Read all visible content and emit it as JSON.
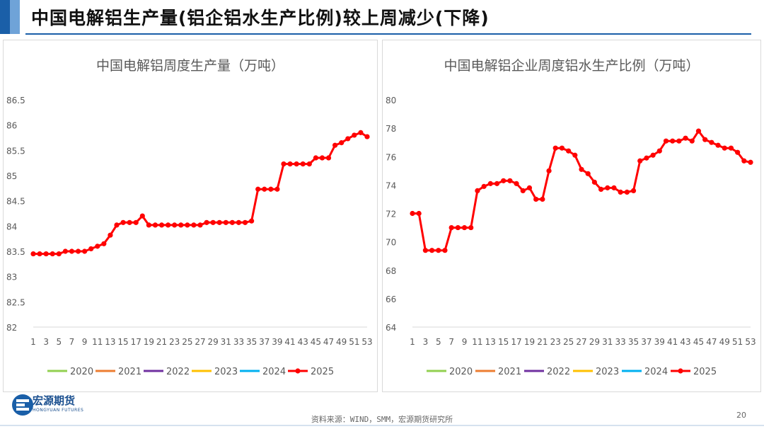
{
  "page": {
    "title": "中国电解铝生产量(铝企铝水生产比例)较上周减少(下降)",
    "source": "资料来源：WIND，SMM，宏源期货研究所",
    "page_number": "20",
    "logo_name": "宏源期货",
    "logo_sub": "HONGYUAN FUTURES",
    "brand_color": "#1a5fa8"
  },
  "chart_data": [
    {
      "type": "line",
      "title": "中国电解铝周度生产量（万吨）",
      "x": [
        1,
        2,
        3,
        4,
        5,
        6,
        7,
        8,
        9,
        10,
        11,
        12,
        13,
        14,
        15,
        16,
        17,
        18,
        19,
        20,
        21,
        22,
        23,
        24,
        25,
        26,
        27,
        28,
        29,
        30,
        31,
        32,
        33,
        34,
        35,
        36,
        37,
        38,
        39,
        40,
        41,
        42,
        43,
        44,
        45,
        46,
        47,
        48,
        49,
        50,
        51,
        52,
        53
      ],
      "x_tick_labels": [
        "1",
        "3",
        "5",
        "7",
        "9",
        "11",
        "13",
        "15",
        "17",
        "19",
        "21",
        "23",
        "25",
        "27",
        "29",
        "31",
        "33",
        "35",
        "37",
        "39",
        "41",
        "43",
        "45",
        "47",
        "49",
        "51",
        "53"
      ],
      "y_tick_labels": [
        "82",
        "82.5",
        "83",
        "83.5",
        "84",
        "84.5",
        "85",
        "85.5",
        "86",
        "86.5"
      ],
      "ylim": [
        82,
        86.5
      ],
      "legend": [
        "2020",
        "2021",
        "2022",
        "2023",
        "2024",
        "2025"
      ],
      "legend_colors": [
        "#92d050",
        "#ed7d31",
        "#7030a0",
        "#ffc000",
        "#00b0f0",
        "#ff0000"
      ],
      "legend_position": "bottom",
      "series": [
        {
          "name": "2025",
          "color": "#ff0000",
          "values": [
            83.45,
            83.45,
            83.45,
            83.45,
            83.45,
            83.5,
            83.5,
            83.5,
            83.5,
            83.55,
            83.6,
            83.65,
            83.82,
            84.02,
            84.07,
            84.07,
            84.07,
            84.2,
            84.02,
            84.02,
            84.02,
            84.02,
            84.02,
            84.02,
            84.02,
            84.02,
            84.02,
            84.07,
            84.07,
            84.07,
            84.07,
            84.07,
            84.07,
            84.07,
            84.1,
            84.73,
            84.73,
            84.73,
            84.73,
            85.23,
            85.23,
            85.23,
            85.23,
            85.23,
            85.35,
            85.35,
            85.35,
            85.6,
            85.65,
            85.73,
            85.8,
            85.85,
            85.77
          ]
        }
      ]
    },
    {
      "type": "line",
      "title": "中国电解铝企业周度铝水生产比例（万吨）",
      "x": [
        1,
        2,
        3,
        4,
        5,
        6,
        7,
        8,
        9,
        10,
        11,
        12,
        13,
        14,
        15,
        16,
        17,
        18,
        19,
        20,
        21,
        22,
        23,
        24,
        25,
        26,
        27,
        28,
        29,
        30,
        31,
        32,
        33,
        34,
        35,
        36,
        37,
        38,
        39,
        40,
        41,
        42,
        43,
        44,
        45,
        46,
        47,
        48,
        49,
        50,
        51,
        52,
        53
      ],
      "x_tick_labels": [
        "1",
        "3",
        "5",
        "7",
        "9",
        "11",
        "13",
        "15",
        "17",
        "19",
        "21",
        "23",
        "25",
        "27",
        "29",
        "31",
        "33",
        "35",
        "37",
        "39",
        "41",
        "43",
        "45",
        "47",
        "49",
        "51",
        "53"
      ],
      "y_tick_labels": [
        "64",
        "66",
        "68",
        "70",
        "72",
        "74",
        "76",
        "78",
        "80"
      ],
      "ylim": [
        64,
        80
      ],
      "legend": [
        "2020",
        "2021",
        "2022",
        "2023",
        "2024",
        "2025"
      ],
      "legend_colors": [
        "#92d050",
        "#ed7d31",
        "#7030a0",
        "#ffc000",
        "#00b0f0",
        "#ff0000"
      ],
      "legend_position": "bottom",
      "series": [
        {
          "name": "2025",
          "color": "#ff0000",
          "values": [
            72.0,
            72.0,
            69.4,
            69.4,
            69.4,
            69.4,
            71.0,
            71.0,
            71.0,
            71.0,
            73.6,
            73.9,
            74.1,
            74.1,
            74.3,
            74.3,
            74.1,
            73.6,
            73.8,
            73.0,
            73.0,
            75.0,
            76.6,
            76.6,
            76.4,
            76.1,
            75.1,
            74.8,
            74.2,
            73.7,
            73.8,
            73.8,
            73.5,
            73.5,
            73.6,
            75.7,
            75.9,
            76.1,
            76.4,
            77.1,
            77.1,
            77.1,
            77.3,
            77.1,
            77.8,
            77.2,
            77.0,
            76.8,
            76.6,
            76.6,
            76.3,
            75.7,
            75.6
          ]
        }
      ]
    }
  ]
}
